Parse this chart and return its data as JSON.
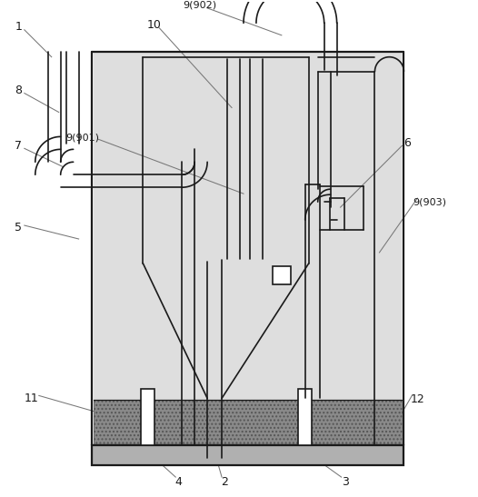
{
  "bg": "#ffffff",
  "lc": "#1a1a1a",
  "ac": "#777777",
  "fill_tank": "#dedede",
  "fill_filter": "#8a8a8a",
  "fill_plate": "#b0b0b0",
  "lw": 1.2,
  "lwt": 1.6,
  "lwn": 0.75,
  "fs": 9,
  "fs_s": 8
}
